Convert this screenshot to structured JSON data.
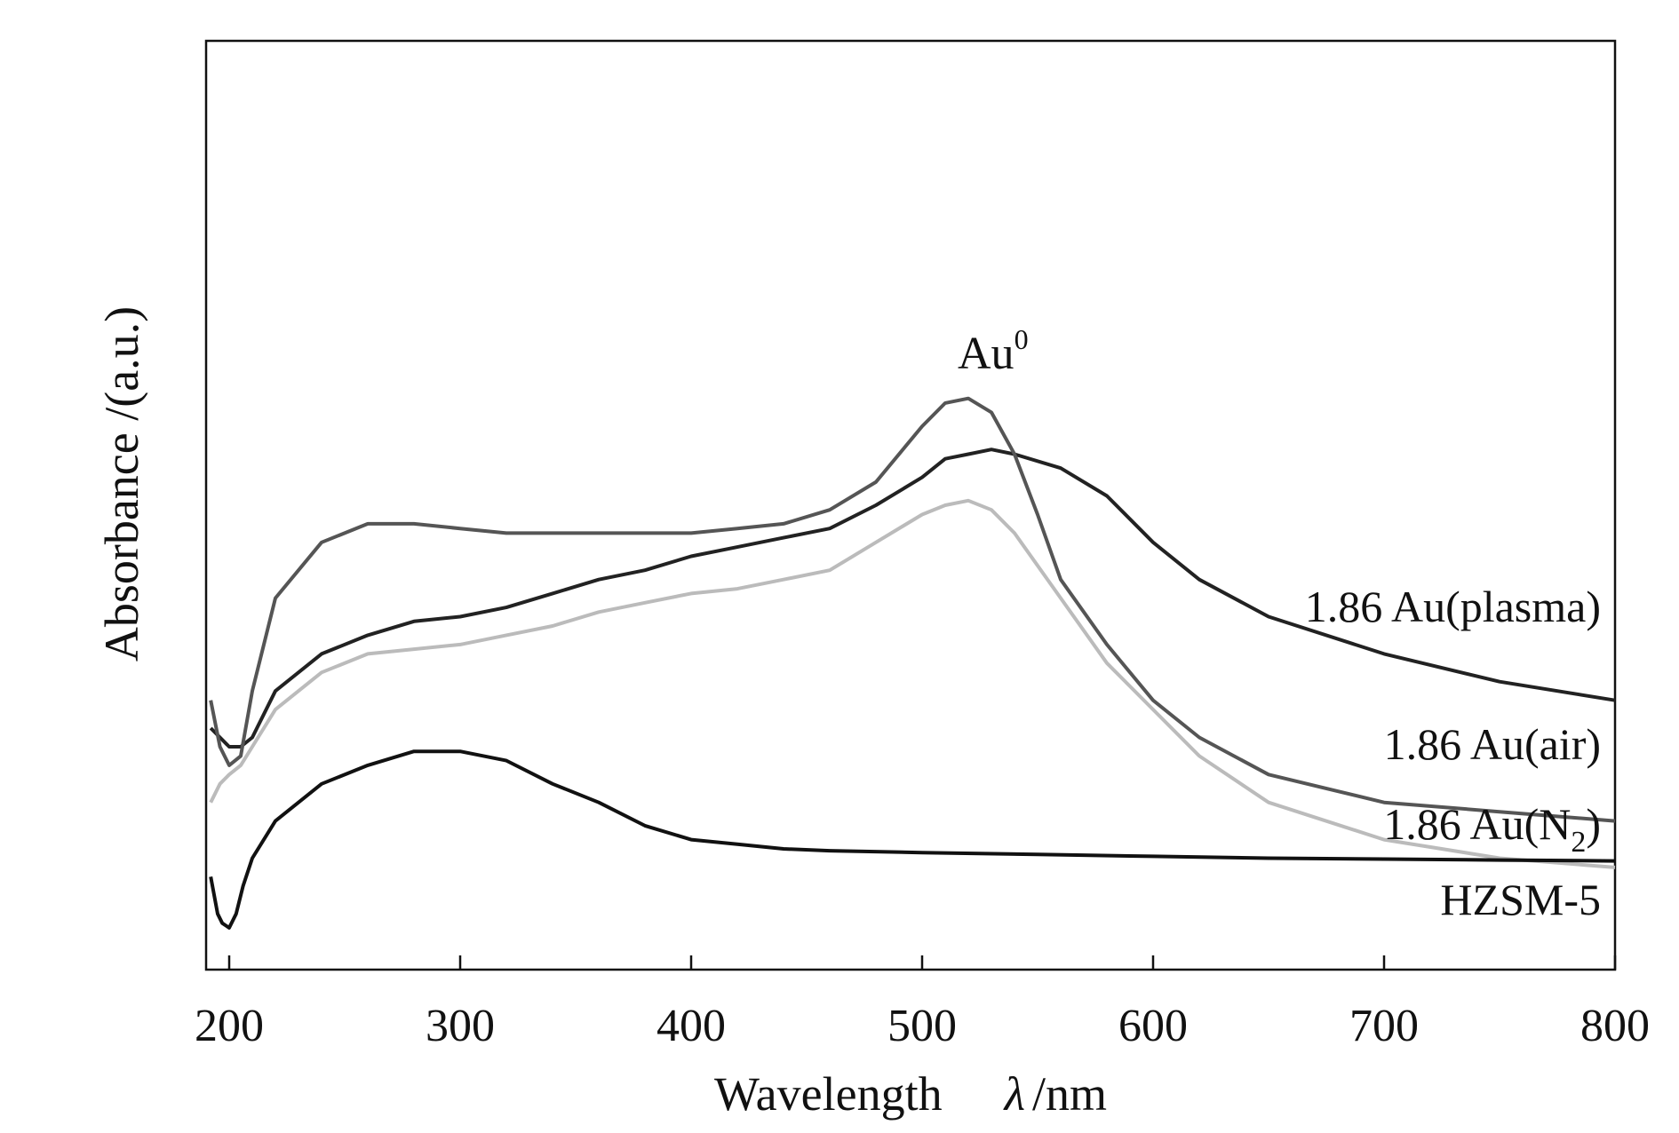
{
  "chart_data": {
    "type": "line",
    "xlabel": "Wavelength",
    "xlabel_symbol": "λ",
    "xlabel_unit": "/nm",
    "ylabel": "Absorbance /(a.u.)",
    "xlim": [
      190,
      800
    ],
    "ylim": [
      0,
      1
    ],
    "grid": false,
    "x_ticks": [
      200,
      300,
      400,
      500,
      600,
      700,
      800
    ],
    "y_ticks_shown": false,
    "annotations": [
      {
        "text": "Au",
        "superscript": "0",
        "x": 520
      }
    ],
    "series": [
      {
        "name": "1.86 Au(plasma)",
        "color": "#222222",
        "x": [
          192,
          200,
          205,
          210,
          220,
          240,
          260,
          280,
          300,
          320,
          340,
          360,
          380,
          400,
          420,
          440,
          460,
          480,
          500,
          510,
          520,
          530,
          540,
          560,
          580,
          600,
          620,
          650,
          700,
          750,
          800
        ],
        "y": [
          0.26,
          0.24,
          0.24,
          0.25,
          0.3,
          0.34,
          0.36,
          0.375,
          0.38,
          0.39,
          0.405,
          0.42,
          0.43,
          0.445,
          0.455,
          0.465,
          0.475,
          0.5,
          0.53,
          0.55,
          0.555,
          0.56,
          0.555,
          0.54,
          0.51,
          0.46,
          0.42,
          0.38,
          0.34,
          0.31,
          0.29
        ]
      },
      {
        "name": "1.86 Au(air)",
        "color": "#555555",
        "x": [
          192,
          196,
          200,
          205,
          210,
          220,
          240,
          260,
          280,
          300,
          320,
          340,
          360,
          380,
          400,
          420,
          440,
          460,
          480,
          500,
          510,
          520,
          530,
          540,
          550,
          560,
          580,
          600,
          620,
          650,
          700,
          750,
          800
        ],
        "y": [
          0.29,
          0.24,
          0.22,
          0.23,
          0.3,
          0.4,
          0.46,
          0.48,
          0.48,
          0.475,
          0.47,
          0.47,
          0.47,
          0.47,
          0.47,
          0.475,
          0.48,
          0.495,
          0.525,
          0.585,
          0.61,
          0.615,
          0.6,
          0.555,
          0.49,
          0.42,
          0.35,
          0.29,
          0.25,
          0.21,
          0.18,
          0.17,
          0.16
        ]
      },
      {
        "name": "1.86 Au(N",
        "name_sub": "2",
        "name_suffix": ")",
        "color": "#bbbbbb",
        "x": [
          192,
          196,
          200,
          205,
          210,
          220,
          240,
          260,
          280,
          300,
          320,
          340,
          360,
          380,
          400,
          420,
          440,
          460,
          480,
          500,
          510,
          520,
          530,
          540,
          560,
          580,
          600,
          620,
          650,
          700,
          750,
          800
        ],
        "y": [
          0.18,
          0.2,
          0.21,
          0.22,
          0.24,
          0.28,
          0.32,
          0.34,
          0.345,
          0.35,
          0.36,
          0.37,
          0.385,
          0.395,
          0.405,
          0.41,
          0.42,
          0.43,
          0.46,
          0.49,
          0.5,
          0.505,
          0.495,
          0.47,
          0.4,
          0.33,
          0.28,
          0.23,
          0.18,
          0.14,
          0.12,
          0.11
        ]
      },
      {
        "name": "HZSM-5",
        "color": "#111111",
        "x": [
          192,
          195,
          197,
          200,
          203,
          206,
          210,
          220,
          240,
          260,
          280,
          300,
          320,
          340,
          360,
          380,
          400,
          420,
          440,
          460,
          500,
          550,
          600,
          650,
          700,
          750,
          800
        ],
        "y": [
          0.1,
          0.06,
          0.05,
          0.045,
          0.06,
          0.09,
          0.12,
          0.16,
          0.2,
          0.22,
          0.235,
          0.235,
          0.225,
          0.2,
          0.18,
          0.155,
          0.14,
          0.135,
          0.13,
          0.128,
          0.126,
          0.124,
          0.122,
          0.12,
          0.119,
          0.118,
          0.117
        ]
      }
    ]
  }
}
